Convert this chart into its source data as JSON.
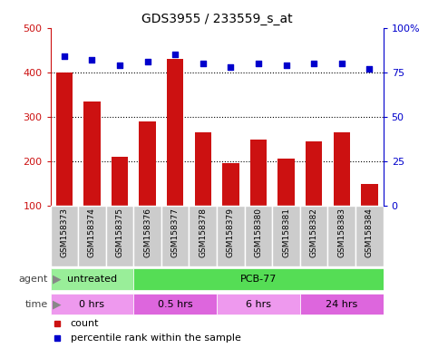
{
  "title": "GDS3955 / 233559_s_at",
  "samples": [
    "GSM158373",
    "GSM158374",
    "GSM158375",
    "GSM158376",
    "GSM158377",
    "GSM158378",
    "GSM158379",
    "GSM158380",
    "GSM158381",
    "GSM158382",
    "GSM158383",
    "GSM158384"
  ],
  "counts": [
    400,
    335,
    210,
    290,
    430,
    265,
    195,
    248,
    205,
    245,
    265,
    148
  ],
  "percentiles": [
    84,
    82,
    79,
    81,
    85,
    80,
    78,
    80,
    79,
    80,
    80,
    77
  ],
  "bar_color": "#cc1111",
  "dot_color": "#0000cc",
  "left_ylim": [
    100,
    500
  ],
  "left_yticks": [
    100,
    200,
    300,
    400,
    500
  ],
  "right_ylim": [
    0,
    100
  ],
  "right_yticks": [
    0,
    25,
    50,
    75,
    100
  ],
  "right_yticklabels": [
    "0",
    "25",
    "50",
    "75",
    "100%"
  ],
  "agent_row": [
    {
      "label": "untreated",
      "start": 0,
      "end": 3,
      "color": "#99ee99"
    },
    {
      "label": "PCB-77",
      "start": 3,
      "end": 12,
      "color": "#55dd55"
    }
  ],
  "time_row": [
    {
      "label": "0 hrs",
      "start": 0,
      "end": 3,
      "color": "#ee99ee"
    },
    {
      "label": "0.5 hrs",
      "start": 3,
      "end": 6,
      "color": "#dd66dd"
    },
    {
      "label": "6 hrs",
      "start": 6,
      "end": 9,
      "color": "#ee99ee"
    },
    {
      "label": "24 hrs",
      "start": 9,
      "end": 12,
      "color": "#dd66dd"
    }
  ],
  "legend_items": [
    {
      "label": "count",
      "color": "#cc1111"
    },
    {
      "label": "percentile rank within the sample",
      "color": "#0000cc"
    }
  ],
  "left_yaxis_color": "#cc1111",
  "right_yaxis_color": "#0000cc",
  "bg_color": "#ffffff",
  "xticklabel_bg": "#cccccc",
  "dotted_yvals": [
    200,
    300,
    400
  ]
}
